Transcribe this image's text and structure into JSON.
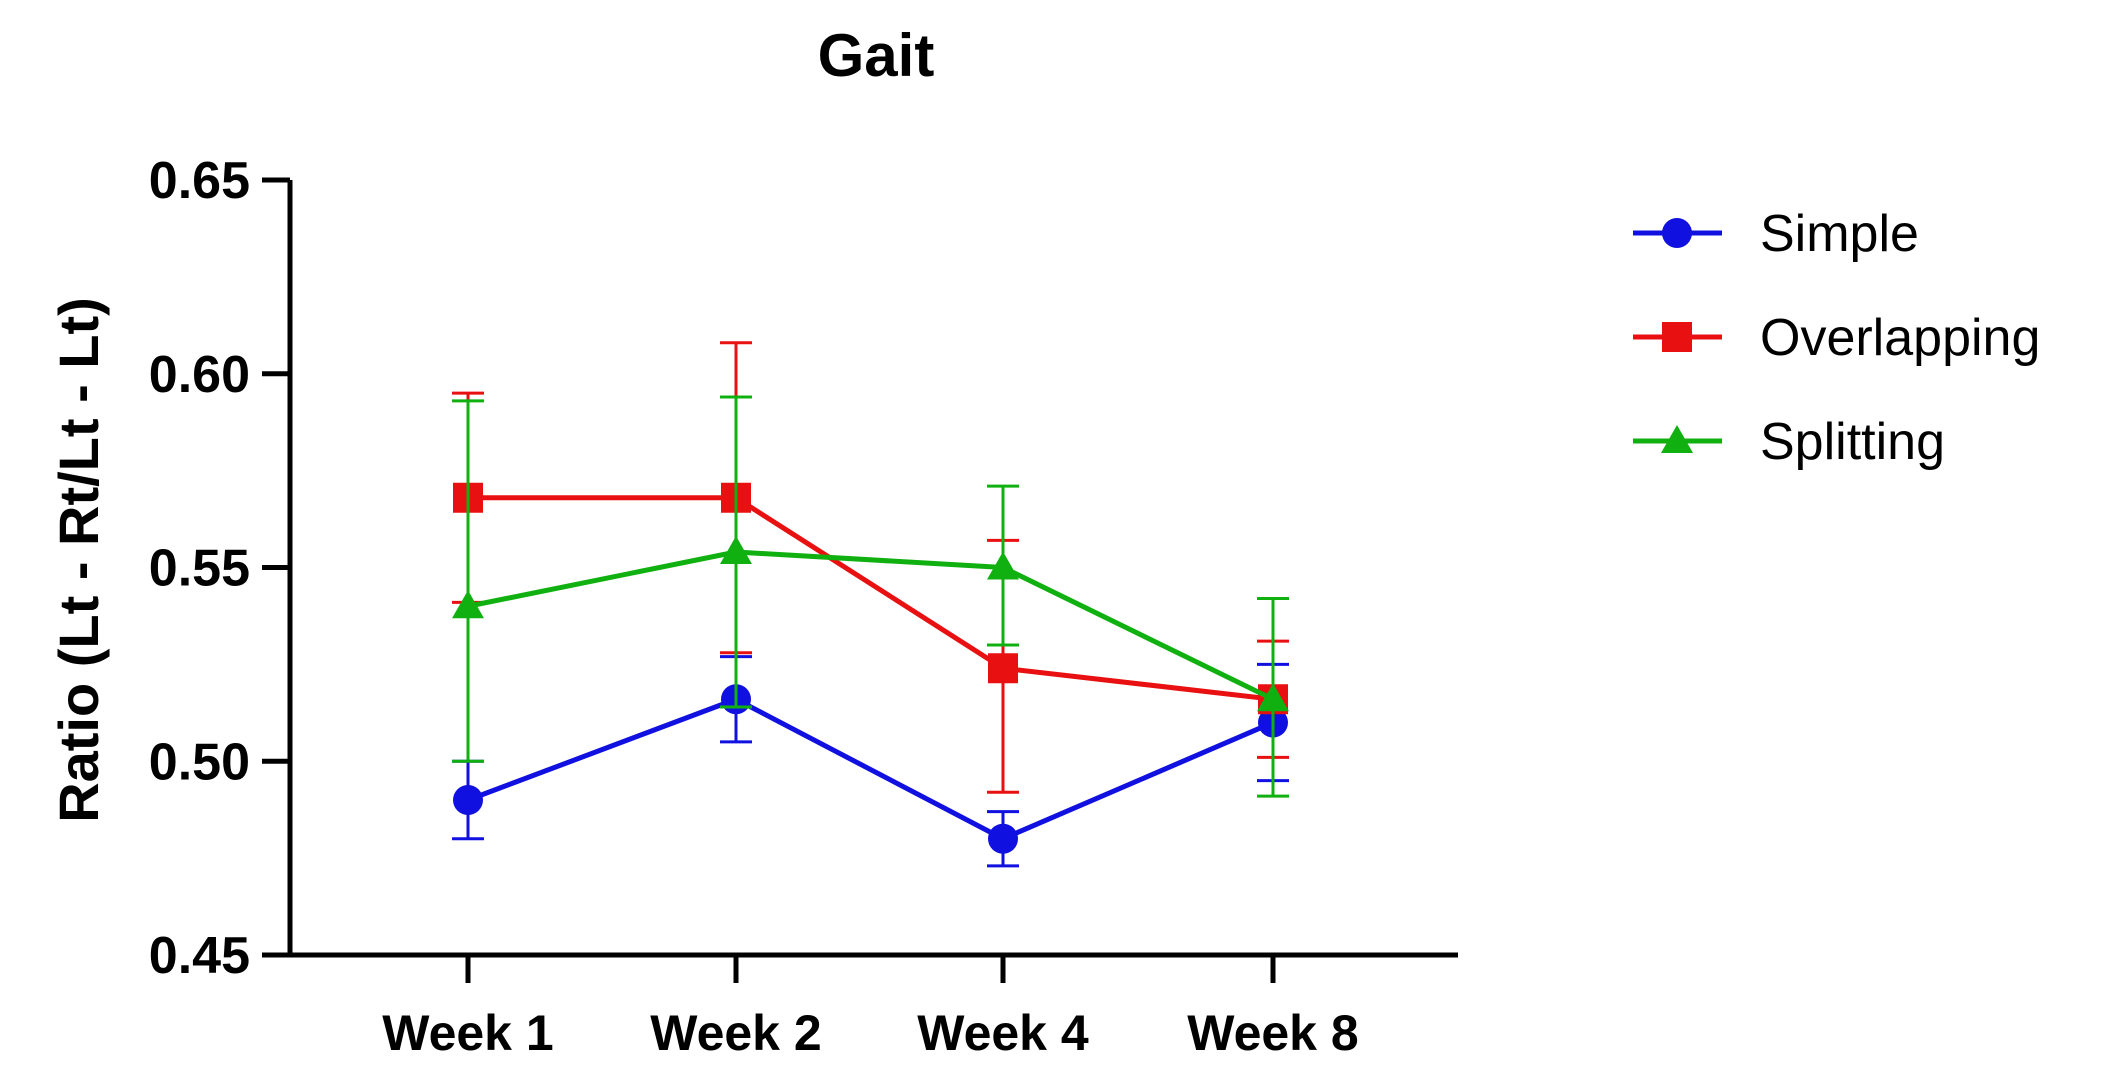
{
  "chart_data": {
    "type": "line",
    "title": "Gait",
    "xlabel": "",
    "ylabel": "Ratio (Lt - Rt/Lt - Lt)",
    "categories": [
      "Week 1",
      "Week 2",
      "Week 4",
      "Week 8"
    ],
    "ylim": [
      0.45,
      0.65
    ],
    "yticks": [
      "0.45",
      "0.50",
      "0.55",
      "0.60",
      "0.65"
    ],
    "ytick_values": [
      0.45,
      0.5,
      0.55,
      0.6,
      0.65
    ],
    "legend_position": "top-right",
    "series": [
      {
        "name": "Simple",
        "color": "#1010e0",
        "marker": "circle",
        "values": [
          0.49,
          0.516,
          0.48,
          0.51
        ],
        "err_low": [
          0.48,
          0.505,
          0.473,
          0.495
        ],
        "err_high": [
          0.5,
          0.527,
          0.487,
          0.525
        ]
      },
      {
        "name": "Overlapping",
        "color": "#e81010",
        "marker": "square",
        "values": [
          0.568,
          0.568,
          0.524,
          0.516
        ],
        "err_low": [
          0.541,
          0.528,
          0.492,
          0.501
        ],
        "err_high": [
          0.595,
          0.608,
          0.557,
          0.531
        ]
      },
      {
        "name": "Splitting",
        "color": "#10b010",
        "marker": "triangle",
        "values": [
          0.54,
          0.554,
          0.55,
          0.516
        ],
        "err_low": [
          0.5,
          0.514,
          0.53,
          0.491
        ],
        "err_high": [
          0.593,
          0.594,
          0.571,
          0.542
        ]
      }
    ]
  }
}
